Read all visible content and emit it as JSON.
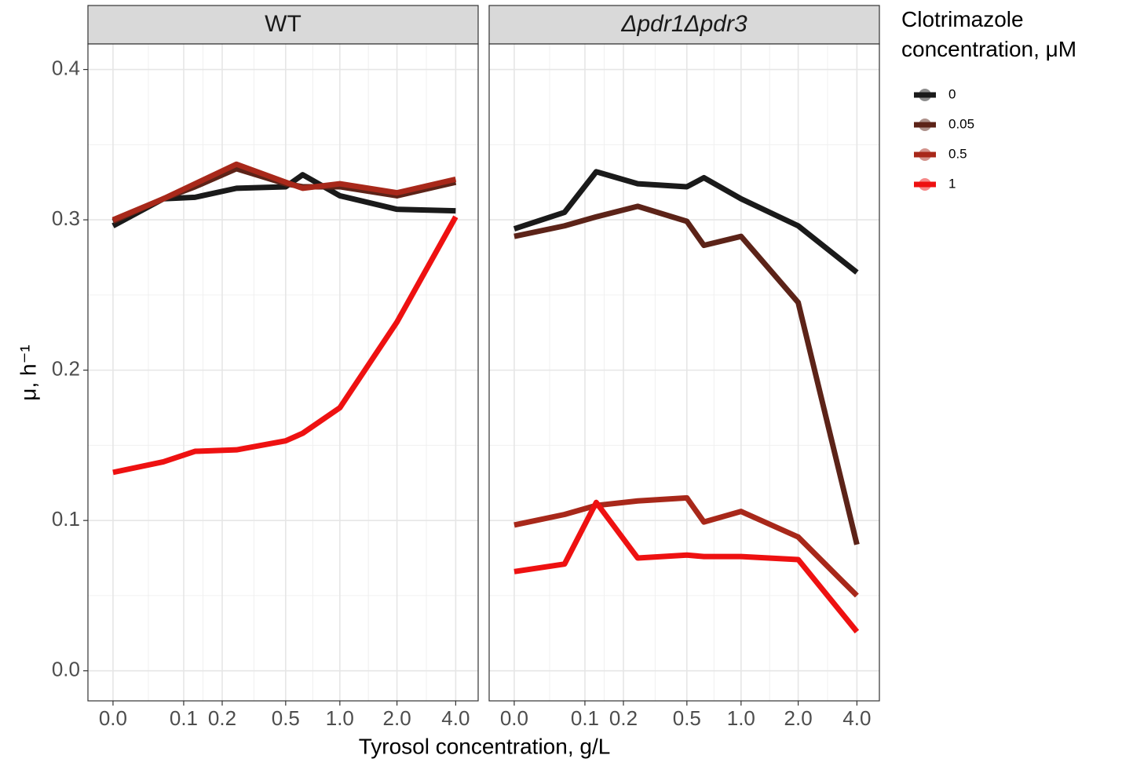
{
  "chart_data": [
    {
      "type": "line",
      "title": "WT",
      "x": [
        0,
        0.0625,
        0.125,
        0.25,
        0.5,
        0.625,
        1,
        2,
        4
      ],
      "xlim": [
        -0.02,
        5.2
      ],
      "xticks": [
        {
          "value": 0,
          "label": "0.0"
        },
        0.1,
        0.2,
        0.5,
        {
          "value": 1,
          "label": "1.0"
        },
        {
          "value": 2,
          "label": "2.0"
        },
        {
          "value": 4,
          "label": "4.0"
        }
      ],
      "ylim": [
        -0.02,
        0.417
      ],
      "yticks": [
        {
          "value": 0,
          "label": "0.0"
        },
        0.1,
        0.2,
        0.3,
        0.4
      ],
      "x_label": "Tyrosol concentration, g/L",
      "y_label": "μ, h⁻¹",
      "grid": true,
      "series": [
        {
          "name": "0",
          "color": "#1a1a1a",
          "values": [
            0.296,
            0.314,
            0.315,
            0.321,
            0.322,
            0.33,
            0.316,
            0.307,
            0.306
          ]
        },
        {
          "name": "0.05",
          "color": "#5c2318",
          "values": [
            0.299,
            0.314,
            0.322,
            0.334,
            0.324,
            0.322,
            0.322,
            0.316,
            0.325
          ]
        },
        {
          "name": "0.5",
          "color": "#a8281a",
          "values": [
            0.3,
            0.314,
            0.324,
            0.337,
            0.325,
            0.321,
            0.324,
            0.318,
            0.327
          ]
        },
        {
          "name": "1",
          "color": "#ee1111",
          "values": [
            0.132,
            0.139,
            0.146,
            0.147,
            0.153,
            0.158,
            0.175,
            0.232,
            0.302
          ]
        }
      ]
    },
    {
      "type": "line",
      "title": "Δpdr1Δpdr3",
      "x": [
        0,
        0.0625,
        0.125,
        0.25,
        0.5,
        0.625,
        1,
        2,
        4
      ],
      "xlim": [
        -0.02,
        5.2
      ],
      "xticks": [
        {
          "value": 0,
          "label": "0.0"
        },
        0.1,
        0.2,
        0.5,
        {
          "value": 1,
          "label": "1.0"
        },
        {
          "value": 2,
          "label": "2.0"
        },
        {
          "value": 4,
          "label": "4.0"
        }
      ],
      "ylim": [
        -0.02,
        0.417
      ],
      "grid": true,
      "series": [
        {
          "name": "0",
          "color": "#1a1a1a",
          "values": [
            0.294,
            0.305,
            0.332,
            0.324,
            0.322,
            0.328,
            0.314,
            0.296,
            0.265
          ]
        },
        {
          "name": "0.05",
          "color": "#5c2318",
          "values": [
            0.289,
            0.296,
            0.302,
            0.309,
            0.299,
            0.283,
            0.289,
            0.245,
            0.084
          ]
        },
        {
          "name": "0.5",
          "color": "#a8281a",
          "values": [
            0.097,
            0.104,
            0.11,
            0.113,
            0.115,
            0.099,
            0.106,
            0.089,
            0.05
          ]
        },
        {
          "name": "1",
          "color": "#ee1111",
          "values": [
            0.066,
            0.071,
            0.112,
            0.075,
            0.077,
            0.076,
            0.076,
            0.074,
            0.026
          ]
        }
      ]
    }
  ],
  "legend": {
    "title": "Clotrimazole concentration, μM"
  }
}
